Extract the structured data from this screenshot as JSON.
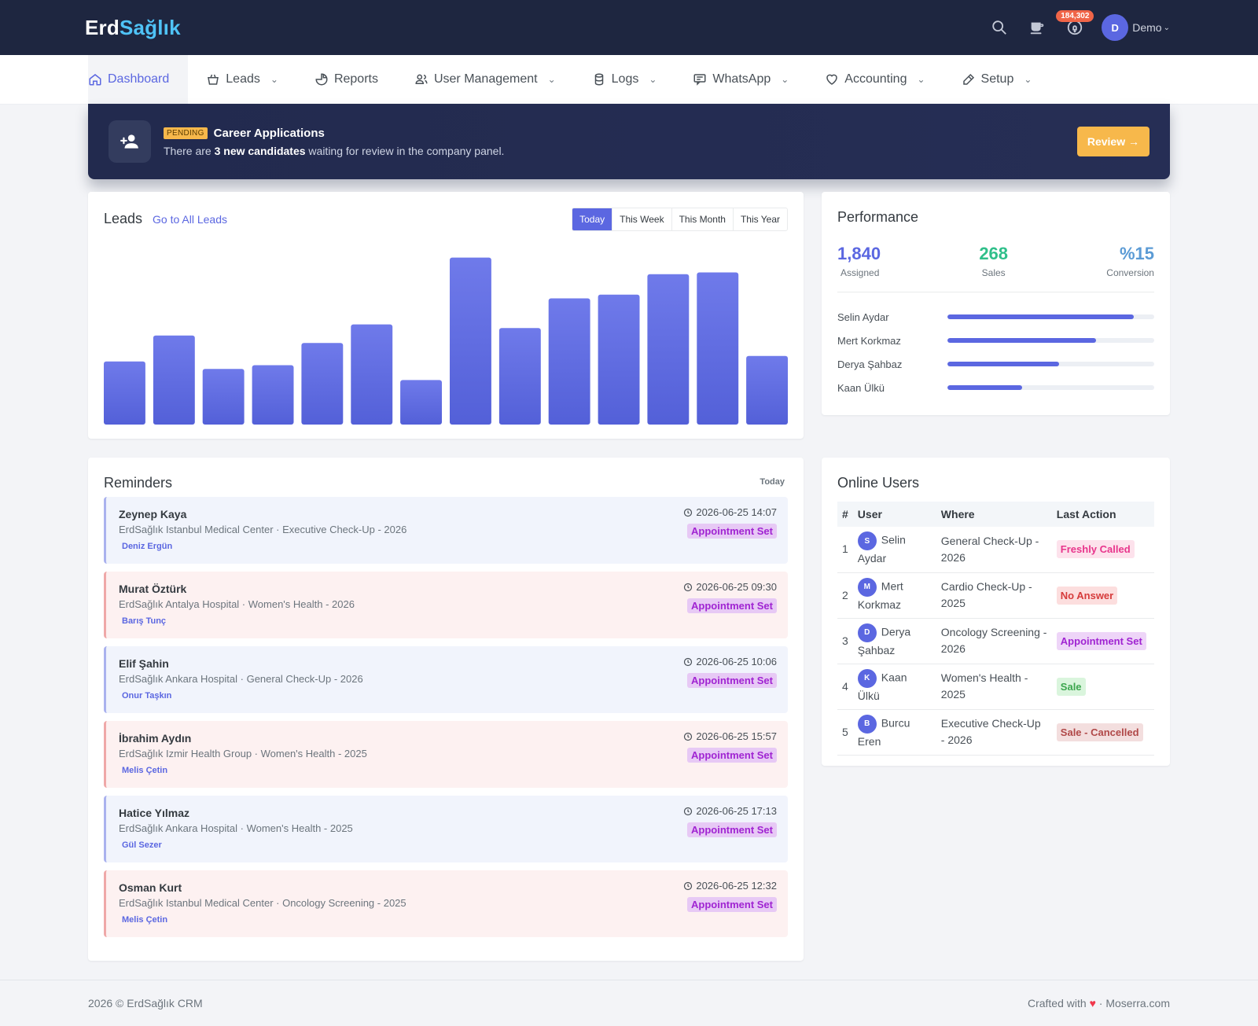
{
  "brand": {
    "part1": "Erd",
    "part2": "Sağlık"
  },
  "topbar": {
    "notification_count": "184,302",
    "user_initial": "D",
    "user_name": "Demo",
    "icons": [
      "search-icon",
      "cup-icon",
      "bell-icon"
    ]
  },
  "nav": [
    {
      "label": "Dashboard",
      "icon": "home-icon",
      "active": true,
      "caret": false
    },
    {
      "label": "Leads",
      "icon": "basket-icon",
      "active": false,
      "caret": true
    },
    {
      "label": "Reports",
      "icon": "pie-icon",
      "active": false,
      "caret": false
    },
    {
      "label": "User Management",
      "icon": "users-icon",
      "active": false,
      "caret": true
    },
    {
      "label": "Logs",
      "icon": "database-icon",
      "active": false,
      "caret": true
    },
    {
      "label": "WhatsApp",
      "icon": "chat-icon",
      "active": false,
      "caret": true
    },
    {
      "label": "Accounting",
      "icon": "heart-outline-icon",
      "active": false,
      "caret": true
    },
    {
      "label": "Setup",
      "icon": "pen-icon",
      "active": false,
      "caret": true
    }
  ],
  "banner": {
    "badge": "PENDING",
    "title": "Career Applications",
    "sub_pre": "There are ",
    "sub_bold": "3 new candidates",
    "sub_post": " waiting for review in the company panel.",
    "button": "Review →"
  },
  "leads": {
    "title": "Leads",
    "link": "Go to All Leads",
    "filters": [
      "Today",
      "This Week",
      "This Month",
      "This Year"
    ],
    "active_filter": "Today"
  },
  "chart_data": {
    "type": "bar",
    "values": [
      34,
      48,
      30,
      32,
      44,
      54,
      24,
      90,
      52,
      68,
      70,
      81,
      82,
      37
    ],
    "ylim": [
      0,
      100
    ],
    "color": "#5b67e1"
  },
  "performance": {
    "title": "Performance",
    "stats": [
      {
        "value": "1,840",
        "label": "Assigned"
      },
      {
        "value": "268",
        "label": "Sales"
      },
      {
        "value": "%15",
        "label": "Conversion"
      }
    ],
    "agents": [
      {
        "name": "Selin Aydar",
        "progress": 0.9
      },
      {
        "name": "Mert Korkmaz",
        "progress": 0.72
      },
      {
        "name": "Derya Şahbaz",
        "progress": 0.54
      },
      {
        "name": "Kaan Ülkü",
        "progress": 0.36
      }
    ]
  },
  "reminders": {
    "title": "Reminders",
    "period": "Today",
    "items": [
      {
        "name": "Zeynep Kaya",
        "sub": "ErdSağlık Istanbul Medical Center · Executive Check-Up - 2026",
        "agent": "Deniz Ergün",
        "time": "2026-06-25 14:07",
        "status": "Appointment Set",
        "tone": "blue"
      },
      {
        "name": "Murat Öztürk",
        "sub": "ErdSağlık Antalya Hospital · Women's Health - 2026",
        "agent": "Barış Tunç",
        "time": "2026-06-25 09:30",
        "status": "Appointment Set",
        "tone": "pink"
      },
      {
        "name": "Elif Şahin",
        "sub": "ErdSağlık Ankara Hospital · General Check-Up - 2026",
        "agent": "Onur Taşkın",
        "time": "2026-06-25 10:06",
        "status": "Appointment Set",
        "tone": "blue"
      },
      {
        "name": "İbrahim Aydın",
        "sub": "ErdSağlık Izmir Health Group · Women's Health - 2025",
        "agent": "Melis Çetin",
        "time": "2026-06-25 15:57",
        "status": "Appointment Set",
        "tone": "pink"
      },
      {
        "name": "Hatice Yılmaz",
        "sub": "ErdSağlık Ankara Hospital · Women's Health - 2025",
        "agent": "Gül Sezer",
        "time": "2026-06-25 17:13",
        "status": "Appointment Set",
        "tone": "blue"
      },
      {
        "name": "Osman Kurt",
        "sub": "ErdSağlık Istanbul Medical Center · Oncology Screening - 2025",
        "agent": "Melis Çetin",
        "time": "2026-06-25 12:32",
        "status": "Appointment Set",
        "tone": "pink"
      }
    ]
  },
  "online_users": {
    "title": "Online Users",
    "columns": [
      "#",
      "User",
      "Where",
      "Last Action"
    ],
    "rows": [
      {
        "n": "1",
        "initial": "S",
        "user": "Selin Aydar",
        "where": "General Check-Up - 2026",
        "action": "Freshly Called",
        "kind": "fc"
      },
      {
        "n": "2",
        "initial": "M",
        "user": "Mert Korkmaz",
        "where": "Cardio Check-Up - 2025",
        "action": "No Answer",
        "kind": "na"
      },
      {
        "n": "3",
        "initial": "D",
        "user": "Derya Şahbaz",
        "where": "Oncology Screening - 2026",
        "action": "Appointment Set",
        "kind": "as"
      },
      {
        "n": "4",
        "initial": "K",
        "user": "Kaan Ülkü",
        "where": "Women's Health - 2025",
        "action": "Sale",
        "kind": "sa"
      },
      {
        "n": "5",
        "initial": "B",
        "user": "Burcu Eren",
        "where": "Executive Check-Up - 2026",
        "action": "Sale - Cancelled",
        "kind": "sc"
      }
    ]
  },
  "footer": {
    "left": "2026 © ErdSağlık CRM",
    "right_pre": "Crafted with",
    "right_post": "· Moserra.com"
  }
}
